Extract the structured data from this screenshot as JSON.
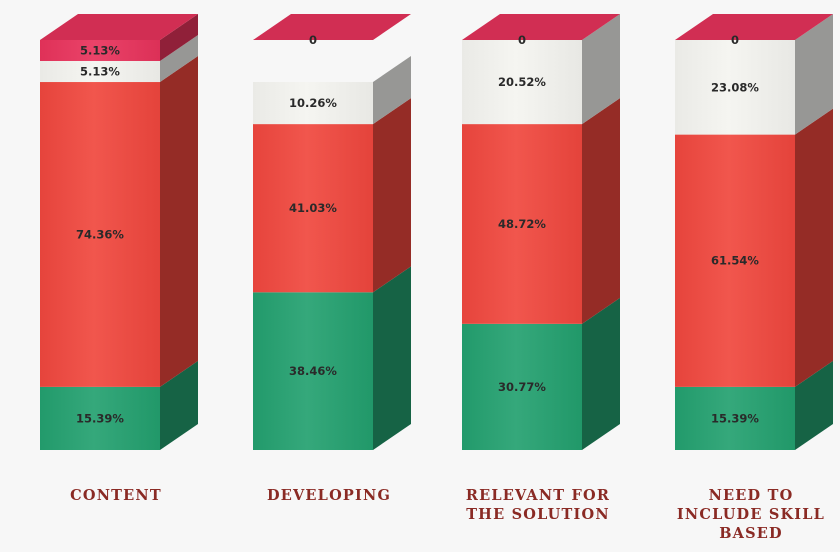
{
  "chart_data": {
    "type": "bar",
    "stacked": true,
    "style": "3d-column",
    "grid": false,
    "legend": "none",
    "categories": [
      "CONTENT",
      "DEVELOPING",
      "RELEVANT FOR THE SOLUTION",
      "NEED TO INCLUDE SKILL BASED"
    ],
    "category_lines": [
      [
        "CONTENT"
      ],
      [
        "DEVELOPING"
      ],
      [
        "RELEVANT FOR",
        "THE SOLUTION"
      ],
      [
        "NEED TO",
        "INCLUDE SKILL",
        "BASED"
      ]
    ],
    "series": [
      {
        "color": "#23a06f",
        "values": [
          15.39,
          38.46,
          30.77,
          15.39
        ],
        "labels": [
          "15.39%",
          "38.46%",
          "30.77%",
          "15.39%"
        ]
      },
      {
        "color": "#f0473e",
        "values": [
          74.36,
          41.03,
          48.72,
          61.54
        ],
        "labels": [
          "74.36%",
          "41.03%",
          "48.72%",
          "61.54%"
        ]
      },
      {
        "color": "#f4f4f0",
        "values": [
          5.13,
          10.26,
          20.52,
          23.08
        ],
        "labels": [
          "5.13%",
          "10.26%",
          "20.52%",
          "23.08%"
        ]
      },
      {
        "color": "#e8335c",
        "values": [
          5.13,
          0,
          0,
          0
        ],
        "labels": [
          "5.13%",
          "0",
          "0",
          "0"
        ]
      }
    ],
    "ylim": [
      0,
      100
    ],
    "title": "",
    "xlabel": "",
    "ylabel": ""
  }
}
